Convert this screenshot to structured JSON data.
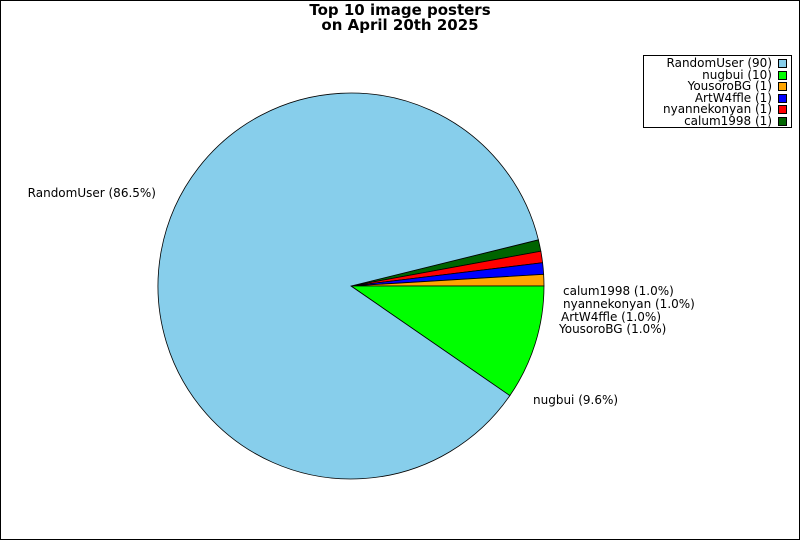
{
  "chart_data": {
    "type": "pie",
    "title": [
      "Top 10 image posters",
      "on April 20th 2025"
    ],
    "slices": [
      {
        "name": "RandomUser",
        "value": 90,
        "percent_label": "RandomUser (86.5%)",
        "legend_label": "RandomUser (90)",
        "color": "#87ceeb"
      },
      {
        "name": "nugbui",
        "value": 10,
        "percent_label": "nugbui (9.6%)",
        "legend_label": "nugbui (10)",
        "color": "#00ff00"
      },
      {
        "name": "YousoroBG",
        "value": 1,
        "percent_label": "YousoroBG (1.0%)",
        "legend_label": "YousoroBG (1)",
        "color": "#ffa500"
      },
      {
        "name": "ArtW4ffle",
        "value": 1,
        "percent_label": "ArtW4ffle (1.0%)",
        "legend_label": "ArtW4ffle (1)",
        "color": "#0000ff"
      },
      {
        "name": "nyannekonyan",
        "value": 1,
        "percent_label": "nyannekonyan (1.0%)",
        "legend_label": "nyannekonyan (1)",
        "color": "#ff0000"
      },
      {
        "name": "calum1998",
        "value": 1,
        "percent_label": "calum1998 (1.0%)",
        "legend_label": "calum1998 (1)",
        "color": "#006400"
      }
    ],
    "legend_placement": "top-right"
  }
}
